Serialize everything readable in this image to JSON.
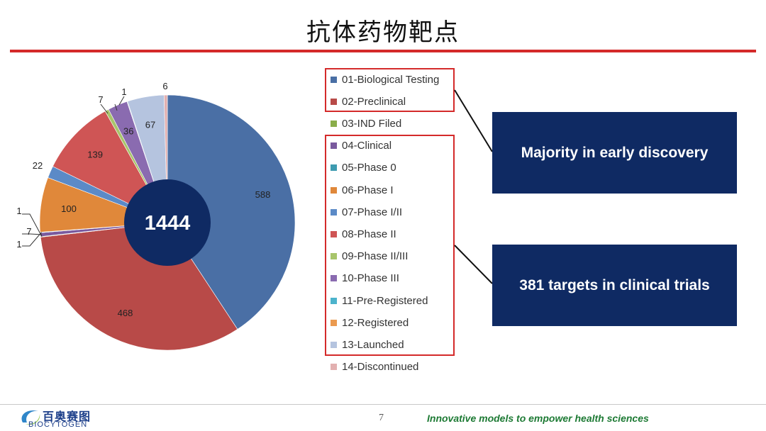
{
  "title": "抗体药物靶点",
  "chart_data": {
    "type": "pie",
    "center_label": "1444",
    "slices": [
      {
        "name": "01-Biological Testing",
        "value": 588,
        "label": "588",
        "color": "#4a6fa5"
      },
      {
        "name": "02-Preclinical",
        "value": 468,
        "label": "468",
        "color": "#b84a48"
      },
      {
        "name": "03-IND Filed",
        "value": 1,
        "label": "1",
        "color": "#8aad4a"
      },
      {
        "name": "04-Clinical",
        "value": 7,
        "label": "7",
        "color": "#7a5a9e"
      },
      {
        "name": "05-Phase 0",
        "value": 1,
        "label": "1",
        "color": "#3e9bb0"
      },
      {
        "name": "06-Phase I",
        "value": 100,
        "label": "100",
        "color": "#e0883a"
      },
      {
        "name": "07-Phase I/II",
        "value": 22,
        "label": "22",
        "color": "#5b8ac7"
      },
      {
        "name": "08-Phase II",
        "value": 139,
        "label": "139",
        "color": "#cf5555"
      },
      {
        "name": "09-Phase II/III",
        "value": 7,
        "label": "7",
        "color": "#a8c56b"
      },
      {
        "name": "10-Phase III",
        "value": 36,
        "label": "36",
        "color": "#8a6bb0"
      },
      {
        "name": "11-Pre-Registered",
        "value": 1,
        "label": "1",
        "color": "#4cb3cc"
      },
      {
        "name": "12-Registered",
        "value": 0,
        "label": "",
        "color": "#eb9a4f"
      },
      {
        "name": "13-Launched",
        "value": 67,
        "label": "67",
        "color": "#b5c4df"
      },
      {
        "name": "14-Discontinued",
        "value": 6,
        "label": "6",
        "color": "#e2b0b0"
      }
    ]
  },
  "callouts": {
    "early": "Majority in early discovery",
    "clinical": "381 targets in clinical trials"
  },
  "footer": {
    "logo_cn": "百奥赛图",
    "logo_en": "BIOCYTOGEN",
    "page_number": "7",
    "tagline": "Innovative models to empower health sciences"
  },
  "colors": {
    "accent_red": "#d42a2a",
    "navy": "#0f2a63",
    "tagline_green": "#1d7a34"
  }
}
